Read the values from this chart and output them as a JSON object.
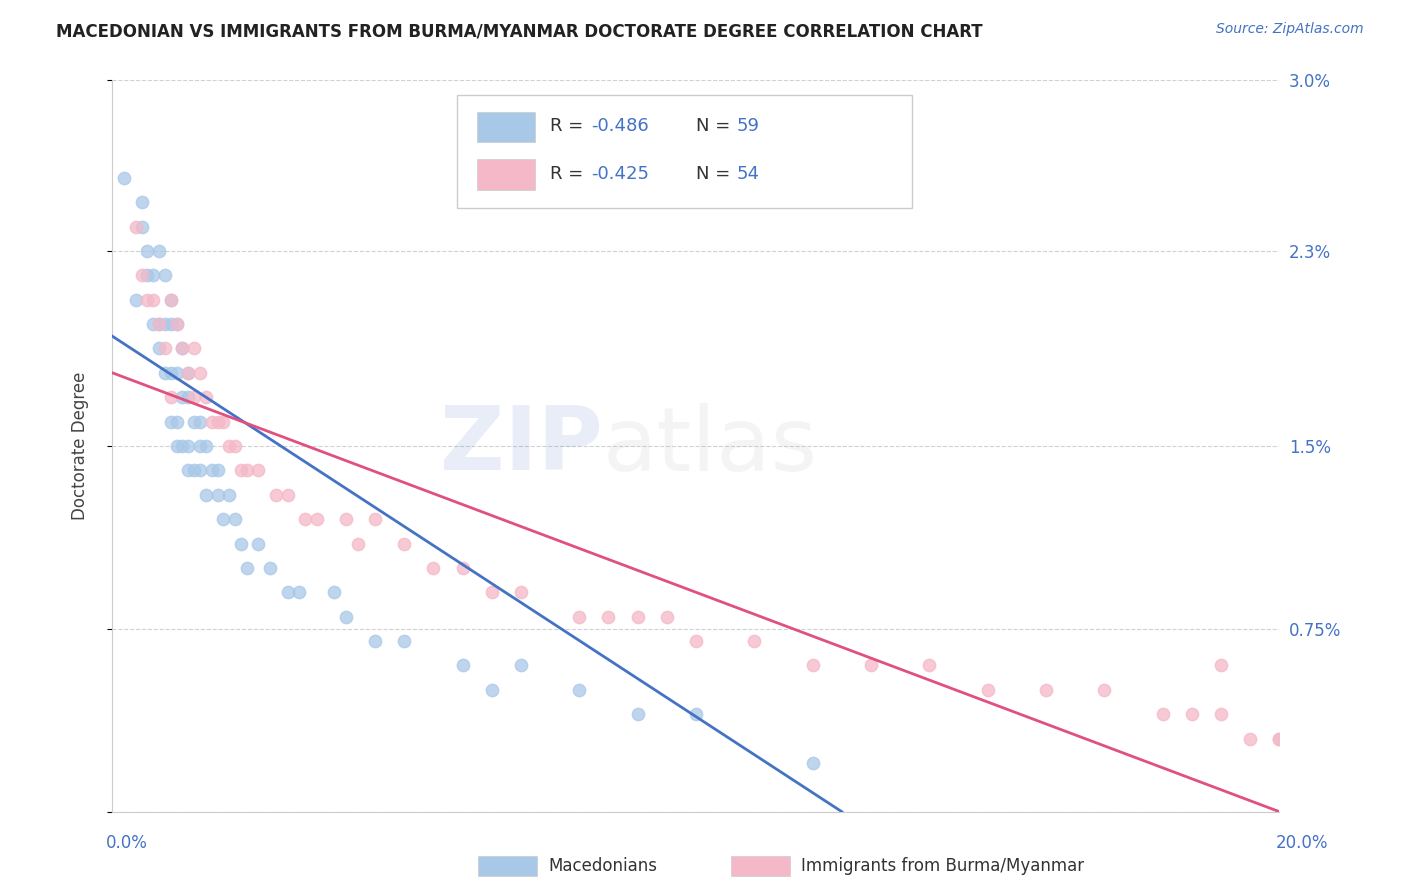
{
  "title": "MACEDONIAN VS IMMIGRANTS FROM BURMA/MYANMAR DOCTORATE DEGREE CORRELATION CHART",
  "source": "Source: ZipAtlas.com",
  "ylabel": "Doctorate Degree",
  "xmin": 0.0,
  "xmax": 0.2,
  "ymin": 0.0,
  "ymax": 0.03,
  "ytick_vals": [
    0.0,
    0.0075,
    0.015,
    0.023,
    0.03
  ],
  "ytick_labels": [
    "",
    "0.75%",
    "1.5%",
    "2.3%",
    "3.0%"
  ],
  "legend_r1": "-0.486",
  "legend_n1": "59",
  "legend_r2": "-0.425",
  "legend_n2": "54",
  "color_blue": "#a8c8e8",
  "color_pink": "#f4b8c8",
  "line_color_blue": "#4472c4",
  "line_color_pink": "#e05080",
  "background_color": "#ffffff",
  "grid_color": "#cccccc",
  "title_color": "#222222",
  "axis_label_color": "#4472c4",
  "blue_scatter_x": [
    0.002,
    0.004,
    0.005,
    0.005,
    0.006,
    0.006,
    0.007,
    0.007,
    0.008,
    0.008,
    0.008,
    0.009,
    0.009,
    0.009,
    0.01,
    0.01,
    0.01,
    0.01,
    0.011,
    0.011,
    0.011,
    0.011,
    0.012,
    0.012,
    0.012,
    0.013,
    0.013,
    0.013,
    0.013,
    0.014,
    0.014,
    0.015,
    0.015,
    0.015,
    0.016,
    0.016,
    0.017,
    0.018,
    0.018,
    0.019,
    0.02,
    0.021,
    0.022,
    0.023,
    0.025,
    0.027,
    0.03,
    0.032,
    0.038,
    0.04,
    0.045,
    0.05,
    0.06,
    0.065,
    0.07,
    0.08,
    0.09,
    0.1,
    0.12
  ],
  "blue_scatter_y": [
    0.026,
    0.021,
    0.025,
    0.024,
    0.023,
    0.022,
    0.022,
    0.02,
    0.023,
    0.02,
    0.019,
    0.022,
    0.02,
    0.018,
    0.021,
    0.02,
    0.018,
    0.016,
    0.02,
    0.018,
    0.016,
    0.015,
    0.019,
    0.017,
    0.015,
    0.018,
    0.017,
    0.015,
    0.014,
    0.016,
    0.014,
    0.016,
    0.015,
    0.014,
    0.015,
    0.013,
    0.014,
    0.014,
    0.013,
    0.012,
    0.013,
    0.012,
    0.011,
    0.01,
    0.011,
    0.01,
    0.009,
    0.009,
    0.009,
    0.008,
    0.007,
    0.007,
    0.006,
    0.005,
    0.006,
    0.005,
    0.004,
    0.004,
    0.002
  ],
  "pink_scatter_x": [
    0.004,
    0.005,
    0.006,
    0.007,
    0.008,
    0.009,
    0.01,
    0.01,
    0.011,
    0.012,
    0.013,
    0.014,
    0.014,
    0.015,
    0.016,
    0.017,
    0.018,
    0.019,
    0.02,
    0.021,
    0.022,
    0.023,
    0.025,
    0.028,
    0.03,
    0.033,
    0.035,
    0.04,
    0.042,
    0.045,
    0.05,
    0.055,
    0.06,
    0.065,
    0.07,
    0.08,
    0.085,
    0.09,
    0.095,
    0.1,
    0.11,
    0.12,
    0.13,
    0.14,
    0.15,
    0.16,
    0.17,
    0.18,
    0.185,
    0.19,
    0.195,
    0.2,
    0.2,
    0.19
  ],
  "pink_scatter_y": [
    0.024,
    0.022,
    0.021,
    0.021,
    0.02,
    0.019,
    0.021,
    0.017,
    0.02,
    0.019,
    0.018,
    0.019,
    0.017,
    0.018,
    0.017,
    0.016,
    0.016,
    0.016,
    0.015,
    0.015,
    0.014,
    0.014,
    0.014,
    0.013,
    0.013,
    0.012,
    0.012,
    0.012,
    0.011,
    0.012,
    0.011,
    0.01,
    0.01,
    0.009,
    0.009,
    0.008,
    0.008,
    0.008,
    0.008,
    0.007,
    0.007,
    0.006,
    0.006,
    0.006,
    0.005,
    0.005,
    0.005,
    0.004,
    0.004,
    0.004,
    0.003,
    0.003,
    0.003,
    0.006
  ],
  "blue_line_x": [
    0.0,
    0.125
  ],
  "blue_line_y": [
    0.0195,
    0.0
  ],
  "pink_line_x": [
    0.0,
    0.2
  ],
  "pink_line_y": [
    0.018,
    0.0
  ],
  "watermark_zip_color": "#4472c4",
  "watermark_atlas_color": "#aaaaaa"
}
